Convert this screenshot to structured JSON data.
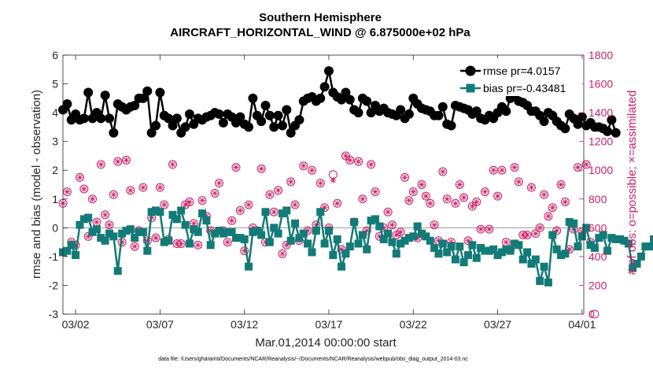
{
  "chart_data": {
    "type": "line",
    "title": "Southern Hemisphere",
    "subtitle": "AIRCRAFT_HORIZONTAL_WIND @ 6.875000e+02 hPa",
    "xlabel": "Mar.01,2014 00:00:00 start",
    "ylabel": "rmse and bias (model - observation)",
    "ylabel_right": "# of obs: o=possible; ×=assimilated",
    "footnote": "data file: /Users/gharamti/Documents/NCAR/Reanalysis/~/Documents/NCAR/Reanalysis/webpub/obs_diag_output_2014-03.nc",
    "x_ticks": [
      "03/02",
      "03/07",
      "03/12",
      "03/17",
      "03/22",
      "03/27",
      "04/01"
    ],
    "y_ticks": [
      "-3",
      "-2",
      "-1",
      "0",
      "1",
      "2",
      "3",
      "4",
      "5",
      "6"
    ],
    "y_ticks_right": [
      "0",
      "200",
      "400",
      "600",
      "800",
      "1000",
      "1200",
      "1400",
      "1600",
      "1800"
    ],
    "xlim_days": [
      0.25,
      31.1
    ],
    "ylim": [
      -3,
      6
    ],
    "ylim_right": [
      0,
      1800
    ],
    "zero_line": 0,
    "legend_position": "top-right",
    "series": [
      {
        "name": "rmse pr=4.0157",
        "color": "#000000",
        "marker": "circle",
        "values": [
          4.1,
          4.3,
          3.75,
          3.95,
          3.75,
          3.8,
          4.7,
          3.8,
          4.0,
          3.8,
          4.6,
          3.8,
          3.3,
          4.3,
          4.2,
          4.1,
          4.2,
          4.25,
          4.5,
          4.5,
          4.75,
          3.3,
          3.55,
          4.7,
          3.9,
          3.8,
          3.55,
          3.8,
          3.3,
          3.5,
          3.95,
          3.6,
          3.8,
          3.75,
          3.85,
          3.9,
          4.0,
          3.95,
          3.65,
          3.95,
          3.85,
          3.65,
          3.85,
          3.6,
          3.5,
          4.5,
          3.9,
          3.7,
          4.25,
          3.9,
          3.5,
          3.9,
          3.55,
          4.1,
          3.3,
          3.55,
          3.75,
          4.4,
          4.5,
          4.55,
          4.4,
          4.5,
          4.9,
          5.45,
          4.7,
          4.55,
          4.45,
          4.7,
          4.45,
          4.1,
          4.0,
          4.5,
          4.4,
          4.0,
          4.25,
          4.05,
          4.15,
          4.0,
          3.95,
          3.9,
          4.1,
          3.8,
          3.95,
          4.5,
          4.3,
          4.15,
          4.1,
          4.05,
          3.9,
          3.9,
          4.2,
          3.6,
          3.55,
          4.25,
          4.2,
          4.15,
          4.1,
          3.95,
          4.05,
          3.8,
          3.75,
          3.9,
          3.8,
          4.0,
          4.2,
          4.05,
          4.5,
          4.55,
          4.4,
          4.35,
          4.25,
          4.05,
          4.05,
          3.9,
          3.7,
          4.0,
          3.9,
          3.7,
          3.55,
          3.45,
          3.95,
          3.8,
          3.6,
          3.85,
          3.55,
          3.65,
          3.5,
          3.5,
          3.45,
          3.35,
          3.75,
          3.3
        ]
      },
      {
        "name": "bias pr=-0.43481",
        "color": "#137b77",
        "marker": "square",
        "values": [
          -0.85,
          -0.8,
          -0.6,
          -0.95,
          0.1,
          0.3,
          0.35,
          -0.15,
          -0.05,
          -0.35,
          -0.45,
          -0.2,
          -0.3,
          -1.5,
          -0.2,
          -0.1,
          -0.05,
          -0.35,
          -0.15,
          -0.15,
          -0.8,
          0.55,
          0.6,
          0.55,
          -0.5,
          -0.45,
          0.45,
          0.3,
          0.6,
          0.1,
          -0.55,
          -0.05,
          -0.15,
          0.5,
          0.25,
          -0.6,
          -0.2,
          -0.1,
          -0.2,
          -0.15,
          -0.15,
          -0.35,
          -0.35,
          -0.4,
          -1.35,
          -0.15,
          -0.1,
          -0.25,
          0.55,
          -0.5,
          0.0,
          -0.2,
          0.5,
          0.6,
          -0.45,
          0.15,
          -0.35,
          -0.2,
          -0.55,
          -0.85,
          -0.1,
          0.55,
          -0.55,
          -0.1,
          -0.95,
          -0.4,
          -1.35,
          -0.9,
          -0.65,
          0.2,
          -0.55,
          -0.25,
          -0.75,
          0.25,
          0.3,
          0.05,
          -0.4,
          -0.2,
          -0.5,
          -0.9,
          -0.55,
          -0.45,
          -0.35,
          -0.3,
          0.05,
          -0.2,
          -0.3,
          -0.45,
          -0.7,
          -0.9,
          -0.55,
          -0.85,
          -0.65,
          -1.1,
          -0.65,
          -1.2,
          -0.95,
          -0.6,
          -1.05,
          -0.7,
          -0.8,
          -0.8,
          -0.75,
          -0.95,
          -0.85,
          -0.75,
          -0.8,
          -0.55,
          -0.6,
          -1.1,
          -0.85,
          -1.25,
          -1.1,
          -1.85,
          -1.35,
          -1.9,
          -0.25,
          -0.75,
          -0.95,
          -0.9,
          0.2,
          0.15,
          -0.65,
          -0.3,
          0.0,
          -0.6,
          -0.7,
          -0.35,
          -0.25,
          -0.8,
          -0.35,
          -0.4,
          -0.4,
          -0.45,
          -0.55,
          -1.4,
          -1.25,
          -1.0,
          -0.65,
          -0.65,
          -0.4,
          -0.3
        ]
      },
      {
        "name": "# of obs possible",
        "color": "#cc1f66",
        "marker": "open-circle",
        "axis": "right",
        "values": [
          770,
          850,
          500,
          480,
          950,
          870,
          540,
          800,
          640,
          1040,
          690,
          620,
          830,
          1060,
          500,
          1070,
          860,
          470,
          580,
          880,
          510,
          670,
          530,
          880,
          760,
          520,
          1040,
          490,
          490,
          760,
          780,
          630,
          480,
          790,
          680,
          580,
          840,
          910,
          580,
          500,
          650,
          1020,
          720,
          440,
          760,
          600,
          580,
          1010,
          500,
          830,
          710,
          860,
          420,
          480,
          920,
          760,
          510,
          1030,
          580,
          1000,
          620,
          910,
          740,
          600,
          970,
          770,
          450,
          1100,
          1070,
          640,
          1060,
          800,
          580,
          1040,
          850,
          540,
          600,
          710,
          620,
          550,
          570,
          950,
          790,
          850,
          530,
          900,
          820,
          770,
          620,
          510,
          990,
          800,
          500,
          770,
          900,
          810,
          510,
          750,
          780,
          590,
          850,
          590,
          1000,
          820,
          1000,
          500,
          450,
          1020,
          920,
          550,
          550,
          880,
          560,
          600,
          830,
          680,
          740,
          580,
          900,
          780,
          450,
          590,
          1020,
          570,
          1040,
          500,
          0
        ]
      },
      {
        "name": "# of obs assimilated",
        "color": "#cc1f66",
        "marker": "cross",
        "axis": "right",
        "values": [
          770,
          850,
          500,
          480,
          950,
          870,
          540,
          800,
          640,
          1040,
          690,
          620,
          830,
          1060,
          500,
          1070,
          860,
          470,
          580,
          880,
          510,
          670,
          530,
          880,
          760,
          520,
          1040,
          490,
          490,
          760,
          780,
          630,
          480,
          790,
          680,
          580,
          840,
          910,
          580,
          500,
          650,
          1020,
          720,
          440,
          760,
          600,
          580,
          1010,
          500,
          830,
          710,
          860,
          420,
          480,
          920,
          760,
          510,
          1030,
          580,
          1000,
          620,
          910,
          740,
          600,
          930,
          770,
          450,
          1100,
          1070,
          640,
          1060,
          800,
          580,
          1040,
          850,
          540,
          600,
          710,
          620,
          550,
          570,
          950,
          790,
          850,
          530,
          900,
          820,
          770,
          620,
          510,
          990,
          800,
          500,
          770,
          900,
          810,
          510,
          750,
          780,
          590,
          850,
          590,
          1000,
          820,
          1000,
          500,
          450,
          1020,
          920,
          550,
          550,
          880,
          560,
          600,
          830,
          680,
          740,
          580,
          900,
          780,
          450,
          590,
          1020,
          570,
          1040,
          500,
          null
        ]
      }
    ]
  }
}
